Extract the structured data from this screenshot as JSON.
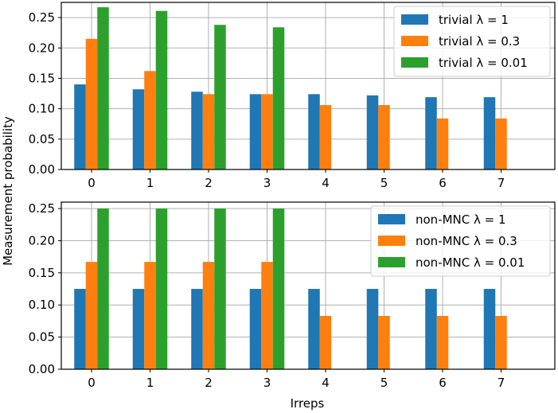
{
  "chart_data": [
    {
      "type": "bar",
      "categories": [
        "0",
        "1",
        "2",
        "3",
        "4",
        "5",
        "6",
        "7"
      ],
      "series": [
        {
          "name": "trivial λ = 1",
          "color": "#1f77b4",
          "values": [
            0.14,
            0.132,
            0.128,
            0.124,
            0.124,
            0.122,
            0.119,
            0.119
          ]
        },
        {
          "name": "trivial λ = 0.3",
          "color": "#ff7f0e",
          "values": [
            0.215,
            0.162,
            0.124,
            0.124,
            0.106,
            0.106,
            0.084,
            0.084
          ]
        },
        {
          "name": "trivial λ = 0.01",
          "color": "#2ca02c",
          "values": [
            0.267,
            0.261,
            0.238,
            0.234,
            0.0,
            0.0,
            0.0,
            0.0
          ]
        }
      ],
      "ylim": [
        0,
        0.275
      ],
      "yticks": [
        "0.00",
        "0.05",
        "0.10",
        "0.15",
        "0.20",
        "0.25"
      ],
      "grid": true,
      "legend_position": "top-right"
    },
    {
      "type": "bar",
      "categories": [
        "0",
        "1",
        "2",
        "3",
        "4",
        "5",
        "6",
        "7"
      ],
      "series": [
        {
          "name": "non-MNC λ = 1",
          "color": "#1f77b4",
          "values": [
            0.125,
            0.125,
            0.125,
            0.125,
            0.125,
            0.125,
            0.125,
            0.125
          ]
        },
        {
          "name": "non-MNC λ = 0.3",
          "color": "#ff7f0e",
          "values": [
            0.167,
            0.167,
            0.167,
            0.167,
            0.083,
            0.083,
            0.083,
            0.083
          ]
        },
        {
          "name": "non-MNC λ = 0.01",
          "color": "#2ca02c",
          "values": [
            0.25,
            0.25,
            0.25,
            0.25,
            0.0,
            0.0,
            0.0,
            0.0
          ]
        }
      ],
      "ylim": [
        0,
        0.26
      ],
      "yticks": [
        "0.00",
        "0.05",
        "0.10",
        "0.15",
        "0.20",
        "0.25"
      ],
      "grid": true,
      "legend_position": "top-right"
    }
  ],
  "xlabel": "Irreps",
  "ylabel": "Measurement probability"
}
